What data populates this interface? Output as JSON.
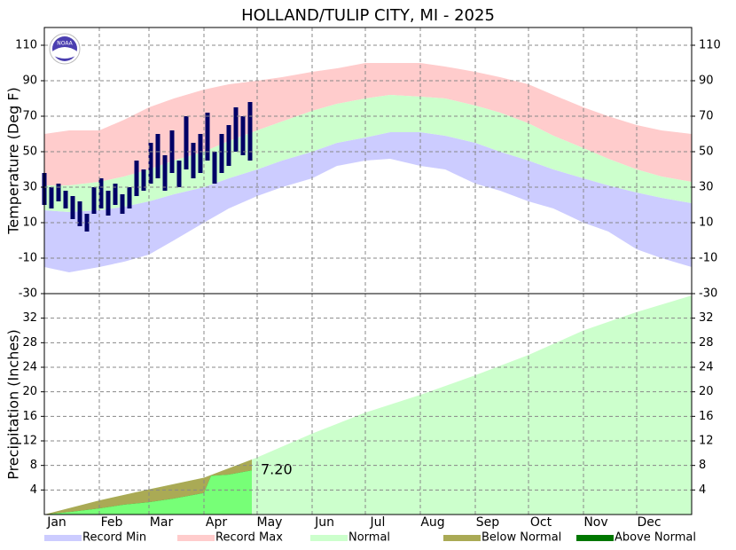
{
  "chart_data": [
    {
      "type": "band",
      "title": "HOLLAND/TULIP CITY, MI - 2025",
      "logo_text": "NOAA",
      "ylabel": "Temperature (Deg F)",
      "xlim": [
        1,
        366
      ],
      "xticks": [
        {
          "value": 1,
          "label": "Jan"
        },
        {
          "value": 32,
          "label": "Feb"
        },
        {
          "value": 60,
          "label": "Mar"
        },
        {
          "value": 91,
          "label": "Apr"
        },
        {
          "value": 121,
          "label": "May"
        },
        {
          "value": 152,
          "label": "Jun"
        },
        {
          "value": 182,
          "label": "Jul"
        },
        {
          "value": 213,
          "label": "Aug"
        },
        {
          "value": 244,
          "label": "Sep"
        },
        {
          "value": 274,
          "label": "Oct"
        },
        {
          "value": 305,
          "label": "Nov"
        },
        {
          "value": 335,
          "label": "Dec"
        }
      ],
      "ylim": [
        -30,
        120
      ],
      "yticks": [
        -30,
        -10,
        10,
        30,
        50,
        70,
        90,
        110
      ],
      "grid": true,
      "x": [
        1,
        15,
        32,
        46,
        60,
        74,
        91,
        105,
        121,
        135,
        152,
        166,
        182,
        196,
        213,
        227,
        244,
        258,
        274,
        288,
        305,
        319,
        335,
        349,
        366
      ],
      "series": [
        {
          "name": "Record Min",
          "color": "#ccccff",
          "values": [
            -15,
            -18,
            -15,
            -12,
            -8,
            0,
            10,
            18,
            25,
            30,
            35,
            42,
            45,
            46,
            42,
            40,
            32,
            28,
            22,
            18,
            10,
            5,
            -5,
            -10,
            -15
          ]
        },
        {
          "name": "Record Max",
          "color": "#ffcccc",
          "values": [
            60,
            62,
            62,
            68,
            75,
            80,
            85,
            88,
            90,
            92,
            95,
            97,
            100,
            100,
            100,
            98,
            95,
            92,
            88,
            82,
            75,
            70,
            65,
            62,
            60
          ]
        },
        {
          "name": "Normal",
          "color": "#ccffcc",
          "low": [
            17,
            16,
            17,
            19,
            22,
            26,
            30,
            35,
            40,
            45,
            50,
            55,
            58,
            61,
            61,
            59,
            55,
            50,
            45,
            40,
            35,
            31,
            27,
            24,
            21
          ],
          "high": [
            31,
            31,
            33,
            36,
            40,
            45,
            50,
            56,
            62,
            67,
            73,
            77,
            80,
            82,
            81,
            80,
            76,
            72,
            66,
            59,
            52,
            46,
            40,
            36,
            33
          ]
        }
      ],
      "observed": {
        "color": "#000066",
        "x": [
          1,
          5,
          9,
          13,
          17,
          21,
          25,
          29,
          33,
          37,
          41,
          45,
          49,
          53,
          57,
          61,
          65,
          69,
          73,
          77,
          81,
          85,
          89,
          93,
          97,
          101,
          105,
          109,
          113,
          117
        ],
        "high": [
          38,
          30,
          32,
          28,
          25,
          22,
          15,
          30,
          35,
          28,
          32,
          26,
          30,
          45,
          40,
          55,
          60,
          48,
          62,
          45,
          70,
          55,
          60,
          72,
          50,
          60,
          65,
          75,
          70,
          78
        ],
        "low": [
          20,
          18,
          22,
          18,
          12,
          8,
          5,
          15,
          18,
          14,
          20,
          15,
          18,
          25,
          28,
          32,
          35,
          28,
          38,
          30,
          40,
          35,
          38,
          45,
          32,
          38,
          42,
          50,
          48,
          45
        ]
      }
    },
    {
      "type": "cumulative",
      "ylabel": "Precipitation (Inches)",
      "xlim": [
        1,
        366
      ],
      "ylim": [
        0,
        36
      ],
      "yticks": [
        4,
        8,
        12,
        16,
        20,
        24,
        28,
        32
      ],
      "grid": true,
      "normal": {
        "color": "#ccffcc",
        "x": [
          1,
          32,
          60,
          91,
          121,
          152,
          182,
          213,
          244,
          274,
          305,
          335,
          366
        ],
        "values": [
          0,
          2.3,
          4.1,
          6.0,
          9.3,
          13.2,
          16.6,
          19.5,
          22.7,
          26.0,
          30.0,
          33.0,
          35.7
        ]
      },
      "observed": {
        "color": "#77ff77",
        "x": [
          1,
          15,
          32,
          46,
          60,
          74,
          91,
          95,
          105,
          118
        ],
        "values": [
          0,
          0.4,
          1.0,
          1.6,
          2.0,
          2.6,
          3.5,
          6.3,
          6.5,
          7.2
        ],
        "value_labels": [
          null,
          null,
          null,
          null,
          null,
          null,
          null,
          null,
          null,
          "7.20"
        ]
      },
      "below_normal": {
        "name": "Below Normal",
        "color": "#aaaa55"
      },
      "above_normal": {
        "name": "Above Normal",
        "color": "#007700"
      }
    }
  ]
}
